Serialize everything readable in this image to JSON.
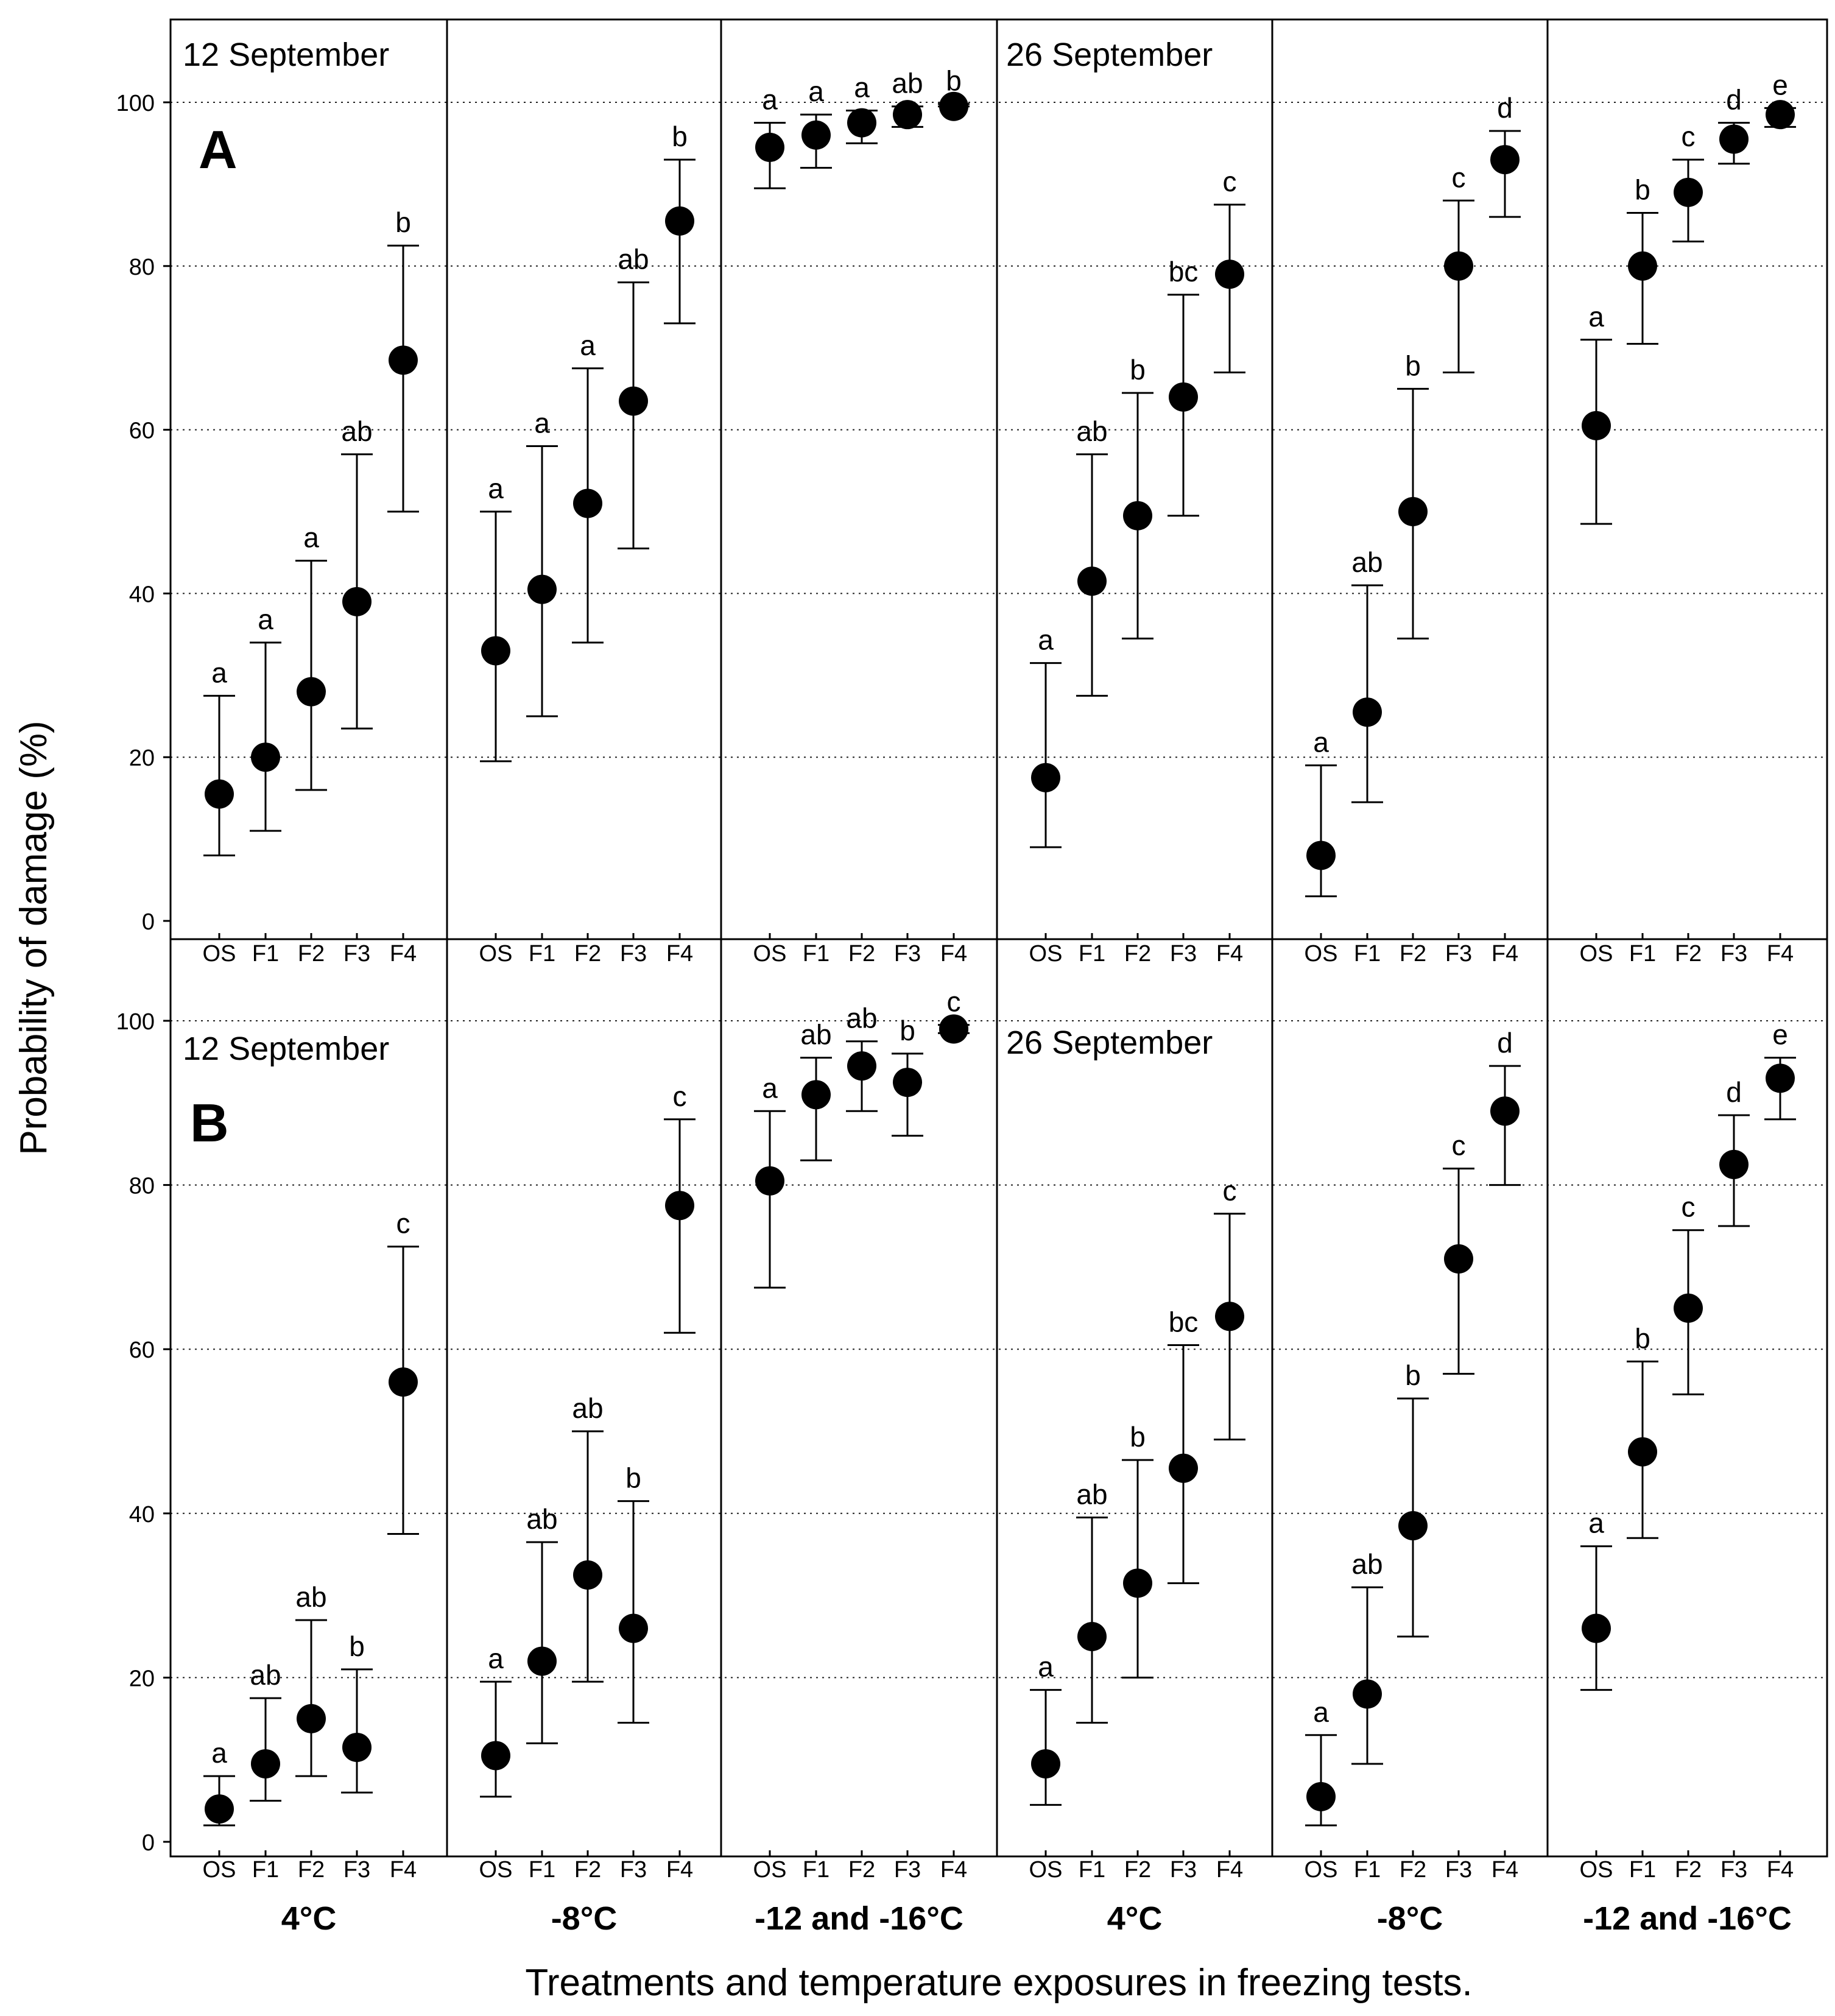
{
  "chart_data": {
    "type": "scatter",
    "title": "",
    "ylabel": "Probability of damage (%)",
    "xlabel": "Treatments and temperature exposures in freezing tests.",
    "ylim": [
      0,
      110
    ],
    "yticks": [
      0,
      20,
      40,
      60,
      80,
      100
    ],
    "grid": "horizontal dotted",
    "treatments": [
      "OS",
      "F1",
      "F2",
      "F3",
      "F4"
    ],
    "temperatures": [
      "4°C",
      "-8°C",
      "-12 and -16°C",
      "4°C",
      "-8°C",
      "-12 and -16°C"
    ],
    "panels": [
      {
        "letter": "A",
        "dates": [
          "12 September",
          "26 September"
        ],
        "groups": [
          {
            "temperature": "4°C",
            "date": "12 September",
            "values": [
              15.5,
              20,
              28,
              39,
              68.5
            ],
            "lower": [
              8,
              11,
              16,
              23.5,
              50
            ],
            "upper": [
              27.5,
              34,
              44,
              57,
              82.5
            ],
            "letters": [
              "a",
              "a",
              "a",
              "ab",
              "b"
            ]
          },
          {
            "temperature": "-8°C",
            "date": "12 September",
            "values": [
              33,
              40.5,
              51,
              63.5,
              85.5
            ],
            "lower": [
              19.5,
              25,
              34,
              45.5,
              73
            ],
            "upper": [
              50,
              58,
              67.5,
              78,
              93
            ],
            "letters": [
              "a",
              "a",
              "a",
              "ab",
              "b"
            ]
          },
          {
            "temperature": "-12 and -16°C",
            "date": "12 September",
            "values": [
              94.5,
              96,
              97.5,
              98.5,
              99.5
            ],
            "lower": [
              89.5,
              92,
              95,
              97,
              99.5
            ],
            "upper": [
              97.5,
              98.5,
              99,
              99.5,
              99.8
            ],
            "letters": [
              "a",
              "a",
              "a",
              "ab",
              "b"
            ]
          },
          {
            "temperature": "4°C",
            "date": "26 September",
            "values": [
              17.5,
              41.5,
              49.5,
              64,
              79
            ],
            "lower": [
              9,
              27.5,
              34.5,
              49.5,
              67
            ],
            "upper": [
              31.5,
              57,
              64.5,
              76.5,
              87.5
            ],
            "letters": [
              "a",
              "ab",
              "b",
              "bc",
              "c"
            ]
          },
          {
            "temperature": "-8°C",
            "date": "26 September",
            "values": [
              8,
              25.5,
              50,
              80,
              93
            ],
            "lower": [
              3,
              14.5,
              34.5,
              67,
              86
            ],
            "upper": [
              19,
              41,
              65,
              88,
              96.5
            ],
            "letters": [
              "a",
              "ab",
              "b",
              "c",
              "d"
            ]
          },
          {
            "temperature": "-12 and -16°C",
            "date": "26 September",
            "values": [
              60.5,
              80,
              89,
              95.5,
              98.5
            ],
            "lower": [
              48.5,
              70.5,
              83,
              92.5,
              97
            ],
            "upper": [
              71,
              86.5,
              93,
              97.5,
              99.3
            ],
            "letters": [
              "a",
              "b",
              "c",
              "d",
              "e"
            ]
          }
        ]
      },
      {
        "letter": "B",
        "dates": [
          "12 September",
          "26 September"
        ],
        "groups": [
          {
            "temperature": "4°C",
            "date": "12 September",
            "values": [
              4,
              9.5,
              15,
              11.5,
              56
            ],
            "lower": [
              2,
              5,
              8,
              6,
              37.5
            ],
            "upper": [
              8,
              17.5,
              27,
              21,
              72.5
            ],
            "letters": [
              "a",
              "ab",
              "ab",
              "b",
              "c"
            ]
          },
          {
            "temperature": "-8°C",
            "date": "12 September",
            "values": [
              10.5,
              22,
              32.5,
              26,
              77.5
            ],
            "lower": [
              5.5,
              12,
              19.5,
              14.5,
              62
            ],
            "upper": [
              19.5,
              36.5,
              50,
              41.5,
              88
            ],
            "letters": [
              "a",
              "ab",
              "ab",
              "b",
              "c"
            ]
          },
          {
            "temperature": "-12 and -16°C",
            "date": "12 September",
            "values": [
              80.5,
              91,
              94.5,
              92.5,
              99
            ],
            "lower": [
              67.5,
              83,
              89,
              86,
              98.5
            ],
            "upper": [
              89,
              95.5,
              97.5,
              96,
              99.5
            ],
            "letters": [
              "a",
              "ab",
              "ab",
              "b",
              "c"
            ]
          },
          {
            "temperature": "4°C",
            "date": "26 September",
            "values": [
              9.5,
              25,
              31.5,
              45.5,
              64
            ],
            "lower": [
              4.5,
              14.5,
              20,
              31.5,
              49
            ],
            "upper": [
              18.5,
              39.5,
              46.5,
              60.5,
              76.5
            ],
            "letters": [
              "a",
              "ab",
              "b",
              "bc",
              "c"
            ]
          },
          {
            "temperature": "-8°C",
            "date": "26 September",
            "values": [
              5.5,
              18,
              38.5,
              71,
              89
            ],
            "lower": [
              2,
              9.5,
              25,
              57,
              80
            ],
            "upper": [
              13,
              31,
              54,
              82,
              94.5
            ],
            "letters": [
              "a",
              "ab",
              "b",
              "c",
              "d"
            ]
          },
          {
            "temperature": "-12 and -16°C",
            "date": "26 September",
            "values": [
              26,
              47.5,
              65,
              82.5,
              93
            ],
            "lower": [
              18.5,
              37,
              54.5,
              75,
              88
            ],
            "upper": [
              36,
              58.5,
              74.5,
              88.5,
              95.5
            ],
            "letters": [
              "a",
              "b",
              "c",
              "d",
              "e"
            ]
          }
        ]
      }
    ]
  }
}
